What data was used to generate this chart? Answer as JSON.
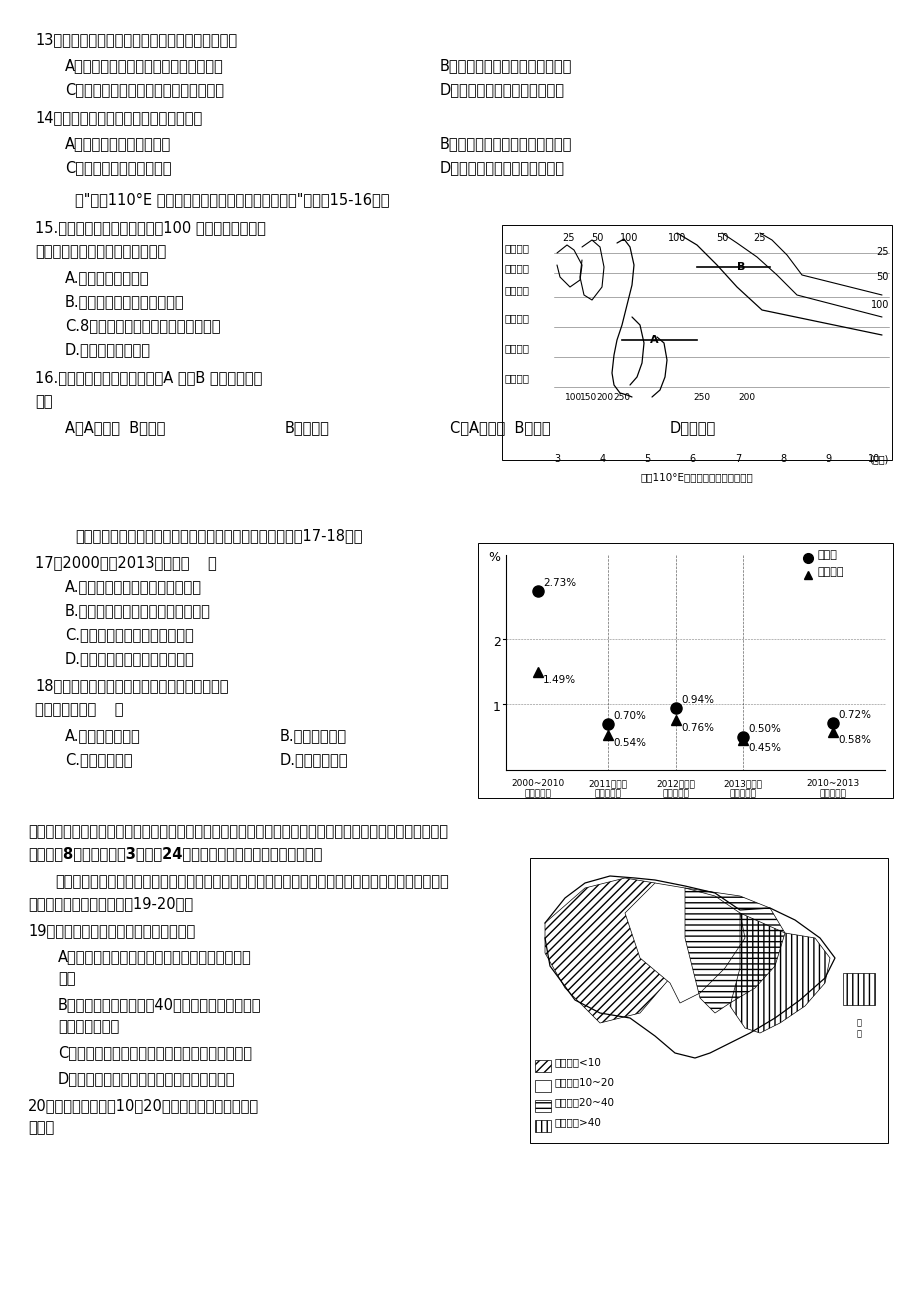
{
  "bg_color": "#ffffff",
  "questions": [
    {
      "num": "13",
      "text": "有关该市人口分布变化特点的说法，正确的是"
    },
    {
      "num": "14",
      "text": "关于该城市发展的叙述，不正确的是"
    }
  ],
  "chart_dots": {
    "zhu": [
      2.73,
      0.7,
      0.94,
      0.5,
      0.72
    ],
    "gd": [
      1.49,
      0.54,
      0.76,
      0.45,
      0.58
    ]
  },
  "map_regions": [
    "辽河流域",
    "海河流域",
    "黄河流域",
    "江淮地区",
    "江南地区",
    "华南地区"
  ],
  "months": [
    "3",
    "4",
    "5",
    "6",
    "7",
    "8",
    "9",
    "10"
  ]
}
